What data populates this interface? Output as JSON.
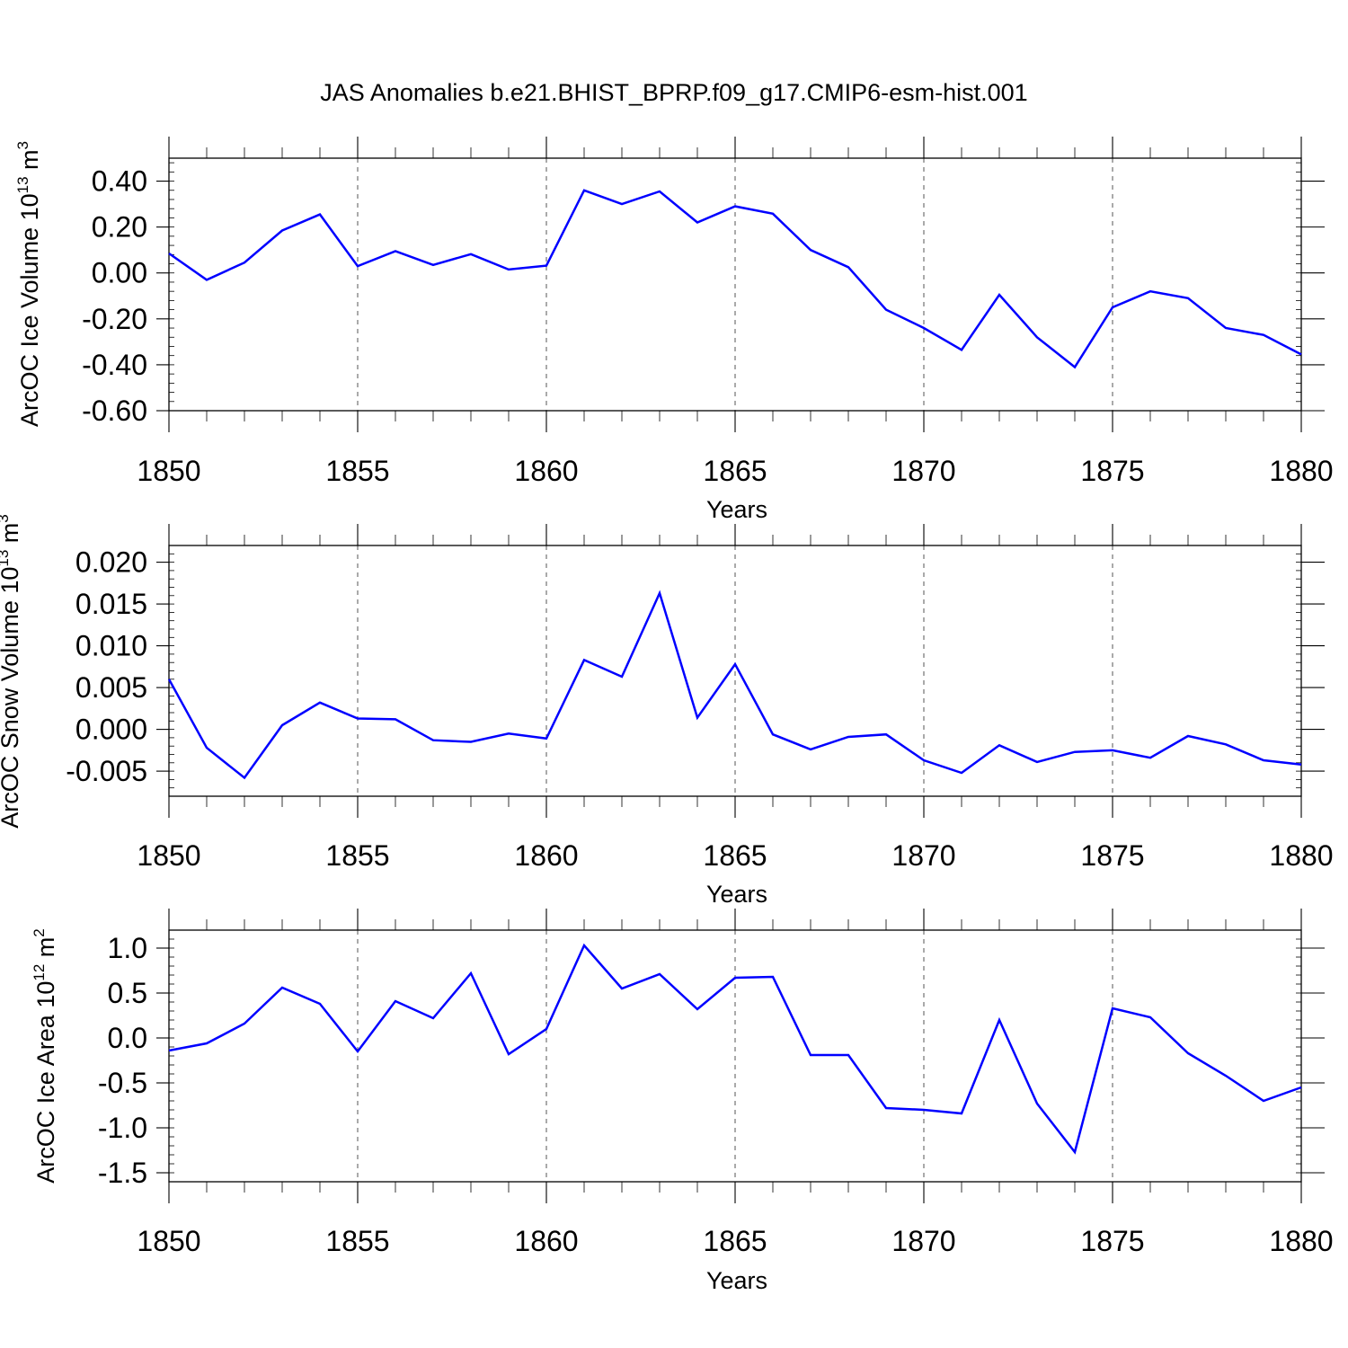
{
  "title": "JAS Anomalies b.e21.BHIST_BPRP.f09_g17.CMIP6-esm-hist.001",
  "colors": {
    "series": "#0000ff",
    "axis": "#000000",
    "grid": "#555555"
  },
  "chart_data": [
    {
      "type": "line",
      "ylabel": "ArcOC Ice Volume 10",
      "ylabel_exp": "13",
      "ylabel_unit": " m",
      "ylabel_unit_exp": "3",
      "xlabel": "Years",
      "xlim": [
        1850,
        1880
      ],
      "ylim": [
        -0.6,
        0.5
      ],
      "yticks": [
        -0.6,
        -0.4,
        -0.2,
        0.0,
        0.2,
        0.4
      ],
      "ytick_labels": [
        "-0.60",
        "-0.40",
        "-0.20",
        "0.00",
        "0.20",
        "0.40"
      ],
      "xticks": [
        1850,
        1855,
        1860,
        1865,
        1870,
        1875,
        1880
      ],
      "xtick_labels": [
        "1850",
        "1855",
        "1860",
        "1865",
        "1870",
        "1875",
        "1880"
      ],
      "grid": "dashed vertical at major x ticks",
      "x": [
        1850,
        1851,
        1852,
        1853,
        1854,
        1855,
        1856,
        1857,
        1858,
        1859,
        1860,
        1861,
        1862,
        1863,
        1864,
        1865,
        1866,
        1867,
        1868,
        1869,
        1870,
        1871,
        1872,
        1873,
        1874,
        1875,
        1876,
        1877,
        1878,
        1879,
        1880
      ],
      "values": [
        0.085,
        -0.03,
        0.045,
        0.185,
        0.255,
        0.03,
        0.095,
        0.035,
        0.082,
        0.015,
        0.032,
        0.36,
        0.3,
        0.355,
        0.22,
        0.29,
        0.258,
        0.1,
        0.025,
        -0.16,
        -0.24,
        -0.335,
        -0.095,
        -0.28,
        -0.41,
        -0.15,
        -0.08,
        -0.11,
        -0.24,
        -0.27,
        -0.355
      ]
    },
    {
      "type": "line",
      "ylabel": "ArcOC Snow Volume 10",
      "ylabel_exp": "13",
      "ylabel_unit": " m",
      "ylabel_unit_exp": "3",
      "xlabel": "Years",
      "xlim": [
        1850,
        1880
      ],
      "ylim": [
        -0.008,
        0.022
      ],
      "yticks": [
        -0.005,
        0.0,
        0.005,
        0.01,
        0.015,
        0.02
      ],
      "ytick_labels": [
        "-0.005",
        "0.000",
        "0.005",
        "0.010",
        "0.015",
        "0.020"
      ],
      "xticks": [
        1850,
        1855,
        1860,
        1865,
        1870,
        1875,
        1880
      ],
      "xtick_labels": [
        "1850",
        "1855",
        "1860",
        "1865",
        "1870",
        "1875",
        "1880"
      ],
      "grid": "dashed vertical at major x ticks",
      "x": [
        1850,
        1851,
        1852,
        1853,
        1854,
        1855,
        1856,
        1857,
        1858,
        1859,
        1860,
        1861,
        1862,
        1863,
        1864,
        1865,
        1866,
        1867,
        1868,
        1869,
        1870,
        1871,
        1872,
        1873,
        1874,
        1875,
        1876,
        1877,
        1878,
        1879,
        1880
      ],
      "values": [
        0.006,
        -0.0022,
        -0.0058,
        0.0005,
        0.0032,
        0.0013,
        0.0012,
        -0.0013,
        -0.0015,
        -0.0005,
        -0.0011,
        0.0083,
        0.0063,
        0.0163,
        0.0014,
        0.0078,
        -0.0006,
        -0.0024,
        -0.0009,
        -0.0006,
        -0.0037,
        -0.0052,
        -0.0019,
        -0.0039,
        -0.0027,
        -0.0025,
        -0.0034,
        -0.0008,
        -0.0018,
        -0.0037,
        -0.0042
      ]
    },
    {
      "type": "line",
      "ylabel": "ArcOC Ice Area 10",
      "ylabel_exp": "12",
      "ylabel_unit": " m",
      "ylabel_unit_exp": "2",
      "xlabel": "Years",
      "xlim": [
        1850,
        1880
      ],
      "ylim": [
        -1.6,
        1.2
      ],
      "yticks": [
        -1.5,
        -1.0,
        -0.5,
        0.0,
        0.5,
        1.0
      ],
      "ytick_labels": [
        "-1.5",
        "-1.0",
        "-0.5",
        "0.0",
        "0.5",
        "1.0"
      ],
      "xticks": [
        1850,
        1855,
        1860,
        1865,
        1870,
        1875,
        1880
      ],
      "xtick_labels": [
        "1850",
        "1855",
        "1860",
        "1865",
        "1870",
        "1875",
        "1880"
      ],
      "grid": "dashed vertical at major x ticks",
      "x": [
        1850,
        1851,
        1852,
        1853,
        1854,
        1855,
        1856,
        1857,
        1858,
        1859,
        1860,
        1861,
        1862,
        1863,
        1864,
        1865,
        1866,
        1867,
        1868,
        1869,
        1870,
        1871,
        1872,
        1873,
        1874,
        1875,
        1876,
        1877,
        1878,
        1879,
        1880
      ],
      "values": [
        -0.14,
        -0.06,
        0.16,
        0.56,
        0.38,
        -0.15,
        0.41,
        0.22,
        0.72,
        -0.18,
        0.1,
        1.03,
        0.55,
        0.71,
        0.32,
        0.67,
        0.68,
        -0.19,
        -0.19,
        -0.78,
        -0.8,
        -0.84,
        0.2,
        -0.73,
        -1.27,
        0.33,
        0.23,
        -0.17,
        -0.42,
        -0.7,
        -0.55
      ]
    }
  ]
}
